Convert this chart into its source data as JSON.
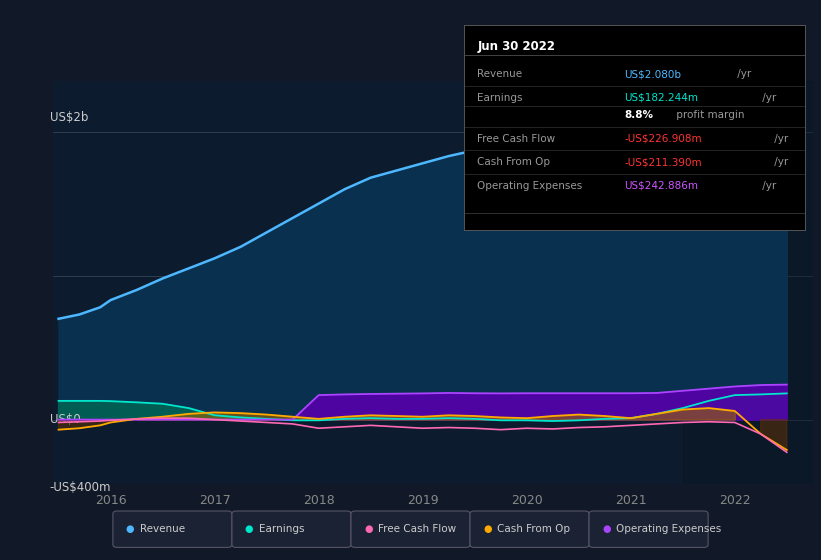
{
  "bg_color": "#111827",
  "plot_bg_color": "#0d1b2e",
  "ylabel_top": "US$2b",
  "ylabel_zero": "US$0",
  "ylabel_bottom": "-US$400m",
  "x_labels": [
    "2016",
    "2017",
    "2018",
    "2019",
    "2020",
    "2021",
    "2022"
  ],
  "x_ticks": [
    2016,
    2017,
    2018,
    2019,
    2020,
    2021,
    2022
  ],
  "ylim": [
    -450,
    2350
  ],
  "xlim": [
    2015.45,
    2022.75
  ],
  "info_box": {
    "title": "Jun 30 2022",
    "rows": [
      {
        "label": "Revenue",
        "value": "US$2.080b",
        "unit": " /yr",
        "value_color": "#4db8ff"
      },
      {
        "label": "Earnings",
        "value": "US$182.244m",
        "unit": " /yr",
        "value_color": "#00e5cc"
      },
      {
        "label": "",
        "value": "8.8%",
        "unit": " profit margin",
        "value_color": "#ffffff",
        "bold_value": true
      },
      {
        "label": "Free Cash Flow",
        "value": "-US$226.908m",
        "unit": " /yr",
        "value_color": "#ff3333"
      },
      {
        "label": "Cash From Op",
        "value": "-US$211.390m",
        "unit": " /yr",
        "value_color": "#ff3333"
      },
      {
        "label": "Operating Expenses",
        "value": "US$242.886m",
        "unit": " /yr",
        "value_color": "#cc55ff"
      }
    ]
  },
  "legend": [
    {
      "label": "Revenue",
      "color": "#4db8ff"
    },
    {
      "label": "Earnings",
      "color": "#00e5cc"
    },
    {
      "label": "Free Cash Flow",
      "color": "#ff69b4"
    },
    {
      "label": "Cash From Op",
      "color": "#ffaa00"
    },
    {
      "label": "Operating Expenses",
      "color": "#aa44ff"
    }
  ],
  "series": {
    "x": [
      2015.5,
      2015.7,
      2015.9,
      2016.0,
      2016.25,
      2016.5,
      2016.75,
      2017.0,
      2017.25,
      2017.5,
      2017.75,
      2018.0,
      2018.25,
      2018.5,
      2018.75,
      2019.0,
      2019.25,
      2019.5,
      2019.75,
      2020.0,
      2020.25,
      2020.5,
      2020.75,
      2021.0,
      2021.25,
      2021.5,
      2021.75,
      2022.0,
      2022.25,
      2022.5
    ],
    "revenue": [
      700,
      730,
      780,
      830,
      900,
      980,
      1050,
      1120,
      1200,
      1300,
      1400,
      1500,
      1600,
      1680,
      1730,
      1780,
      1830,
      1870,
      1890,
      1940,
      1910,
      1960,
      2020,
      2060,
      2100,
      2140,
      2120,
      2080,
      2050,
      2080
    ],
    "earnings": [
      130,
      130,
      130,
      128,
      120,
      110,
      80,
      30,
      15,
      5,
      -5,
      -5,
      5,
      10,
      5,
      5,
      10,
      5,
      -5,
      -5,
      -10,
      -5,
      5,
      10,
      40,
      80,
      130,
      170,
      175,
      182
    ],
    "free_cash_flow": [
      -20,
      -15,
      -10,
      -5,
      5,
      10,
      10,
      0,
      -10,
      -20,
      -30,
      -60,
      -50,
      -40,
      -50,
      -60,
      -55,
      -60,
      -70,
      -60,
      -65,
      -55,
      -50,
      -40,
      -30,
      -20,
      -15,
      -20,
      -100,
      -227
    ],
    "cash_from_op": [
      -70,
      -60,
      -40,
      -20,
      5,
      20,
      40,
      50,
      45,
      35,
      20,
      5,
      20,
      30,
      25,
      20,
      30,
      25,
      15,
      10,
      25,
      35,
      25,
      10,
      40,
      70,
      80,
      60,
      -100,
      -211
    ],
    "operating_expenses": [
      0,
      0,
      0,
      0,
      0,
      0,
      0,
      0,
      0,
      0,
      0,
      170,
      175,
      178,
      180,
      182,
      185,
      183,
      182,
      183,
      183,
      183,
      183,
      183,
      185,
      200,
      215,
      230,
      240,
      243
    ]
  }
}
